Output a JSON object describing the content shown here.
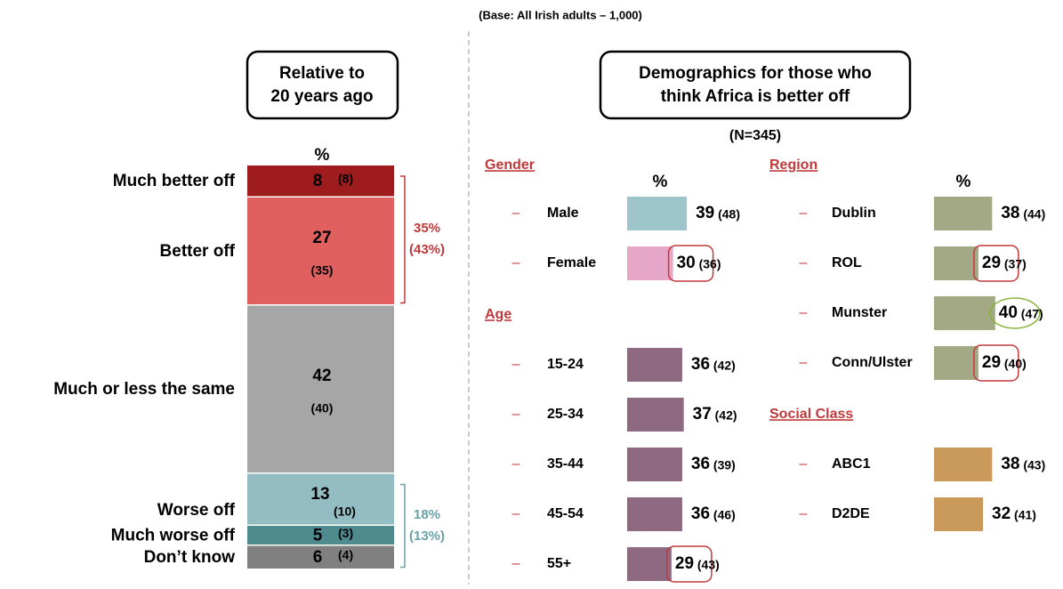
{
  "base_note": "(Base:  All Irish adults – 1,000)",
  "chart_data": [
    {
      "type": "stacked-bar",
      "title_lines": [
        "Relative to",
        "20 years ago"
      ],
      "unit_label": "%",
      "categories": [
        "Much better off",
        "Better off",
        "Much or less the same",
        "Worse off",
        "Much worse off",
        "Don’t know"
      ],
      "values": [
        8,
        27,
        42,
        13,
        5,
        6
      ],
      "previous_labels": [
        "(8)",
        "(35)",
        "(40)",
        "(10)",
        "(3)",
        "(4)"
      ],
      "colors": [
        "#9e1b1e",
        "#e06060",
        "#a6a6a6",
        "#93bdc2",
        "#4e8a8e",
        "#808080"
      ],
      "brackets": [
        {
          "from": 0,
          "to": 1,
          "lines": [
            "35%",
            "(43%)"
          ],
          "color": "#c0393b"
        },
        {
          "from": 3,
          "to": 5,
          "lines": [
            "18%",
            "(13%)"
          ],
          "color": "#6aa0a8"
        }
      ]
    },
    {
      "type": "bar-groups",
      "title_lines": [
        "Demographics for those who",
        "think Africa is better off"
      ],
      "subtitle": "(N=345)",
      "columns": [
        [
          {
            "name": "Gender",
            "unit_label": "%",
            "items": [
              {
                "label": "Male",
                "value": 39,
                "previous_label": "(48)",
                "color": "#9ec5cb"
              },
              {
                "label": "Female",
                "value": 30,
                "previous_label": "(36)",
                "color": "#e6a6c8",
                "highlight": "red"
              }
            ]
          },
          {
            "name": "Age",
            "items": [
              {
                "label": "15-24",
                "value": 36,
                "previous_label": "(42)",
                "color": "#8f6882"
              },
              {
                "label": "25-34",
                "value": 37,
                "previous_label": "(42)",
                "color": "#8f6882"
              },
              {
                "label": "35-44",
                "value": 36,
                "previous_label": "(39)",
                "color": "#8f6882"
              },
              {
                "label": "45-54",
                "value": 36,
                "previous_label": "(46)",
                "color": "#8f6882"
              },
              {
                "label": "55+",
                "value": 29,
                "previous_label": "(43)",
                "color": "#8f6882",
                "highlight": "red"
              }
            ]
          }
        ],
        [
          {
            "name": "Region",
            "unit_label": "%",
            "items": [
              {
                "label": "Dublin",
                "value": 38,
                "previous_label": "(44)",
                "color": "#a3a885"
              },
              {
                "label": "ROL",
                "value": 29,
                "previous_label": "(37)",
                "color": "#a3a885",
                "highlight": "red"
              },
              {
                "label": "Munster",
                "value": 40,
                "previous_label": "(47)",
                "color": "#a3a885",
                "highlight": "green"
              },
              {
                "label": "Conn/Ulster",
                "value": 29,
                "previous_label": "(40)",
                "color": "#a3a885",
                "highlight": "red"
              }
            ]
          },
          {
            "name": "Social Class",
            "items": [
              {
                "label": "ABC1",
                "value": 38,
                "previous_label": "(43)",
                "color": "#c99a5a"
              },
              {
                "label": "D2DE",
                "value": 32,
                "previous_label": "(41)",
                "color": "#c99a5a"
              }
            ]
          }
        ]
      ]
    }
  ]
}
